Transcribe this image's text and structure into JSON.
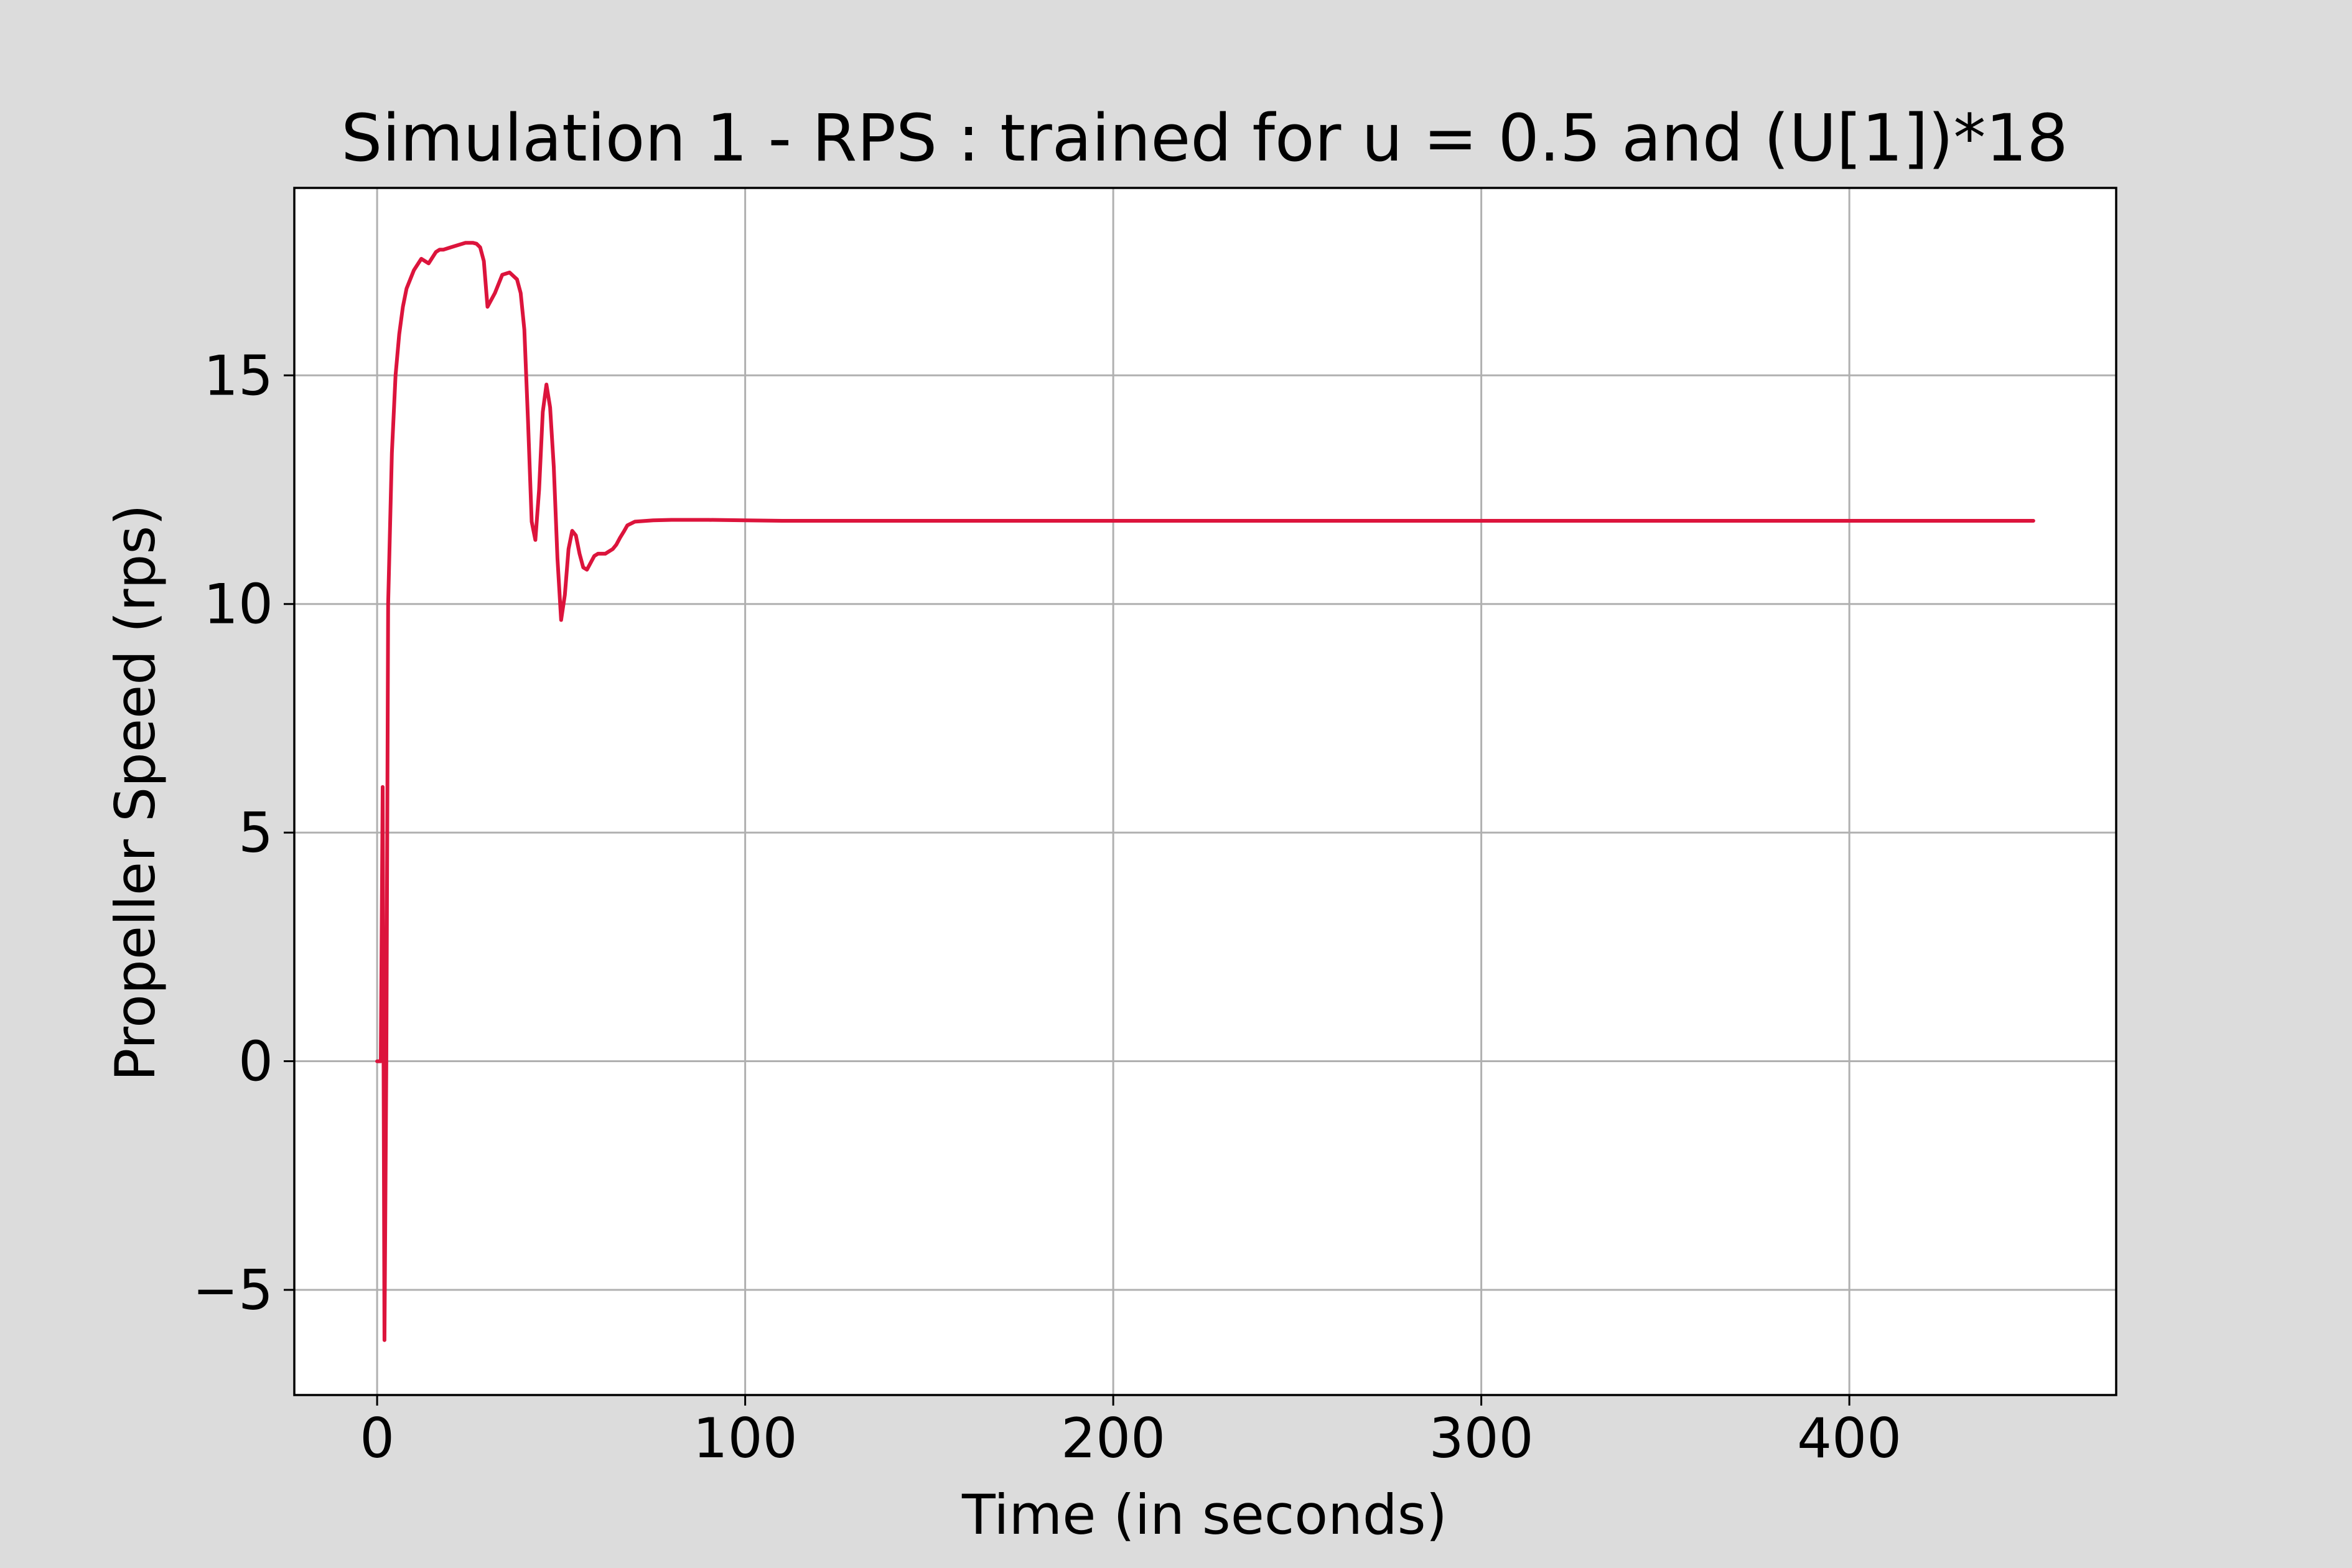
{
  "chart_data": {
    "type": "line",
    "title": "Simulation 1 - RPS : trained for u = 0.5 and (U[1])*18",
    "xlabel": "Time (in seconds)",
    "ylabel": "Propeller Speed (rps)",
    "xlim": [
      -22.5,
      472.5
    ],
    "ylim": [
      -7.3,
      19.1
    ],
    "xticks": [
      0,
      100,
      200,
      300,
      400
    ],
    "xtick_labels": [
      "0",
      "100",
      "200",
      "300",
      "400"
    ],
    "yticks": [
      -5,
      0,
      5,
      10,
      15
    ],
    "ytick_labels": [
      "−5",
      "0",
      "5",
      "10",
      "15"
    ],
    "grid": true,
    "line_color": "#dc143c",
    "background_color": "#dcdcdc",
    "plot_background_color": "#ffffff",
    "series": [
      {
        "x": [
          0,
          1,
          1.5,
          2,
          2.5,
          3,
          4,
          5,
          6,
          7,
          8,
          10,
          12,
          14,
          16,
          17,
          18,
          20,
          22,
          24,
          26,
          27,
          28,
          29,
          30,
          32,
          34,
          36,
          38,
          39,
          40,
          41,
          42,
          43,
          44,
          45,
          46,
          47,
          48,
          49,
          50,
          51,
          52,
          53,
          54,
          55,
          56,
          57,
          58,
          59,
          60,
          61,
          62,
          63,
          64,
          65,
          66,
          67,
          68,
          70,
          75,
          80,
          90,
          100,
          110,
          120,
          130,
          150,
          200,
          300,
          400,
          450
        ],
        "y": [
          0,
          0,
          6,
          -6.1,
          0,
          10,
          13.3,
          15,
          15.9,
          16.5,
          16.9,
          17.3,
          17.55,
          17.45,
          17.7,
          17.75,
          17.75,
          17.8,
          17.85,
          17.9,
          17.9,
          17.88,
          17.8,
          17.5,
          16.5,
          16.8,
          17.2,
          17.25,
          17.1,
          16.8,
          16.0,
          14.0,
          11.8,
          11.4,
          12.5,
          14.2,
          14.8,
          14.3,
          13.0,
          11.0,
          9.65,
          10.2,
          11.2,
          11.6,
          11.5,
          11.1,
          10.8,
          10.75,
          10.9,
          11.05,
          11.1,
          11.1,
          11.1,
          11.15,
          11.2,
          11.3,
          11.45,
          11.58,
          11.72,
          11.8,
          11.83,
          11.84,
          11.84,
          11.83,
          11.82,
          11.82,
          11.82,
          11.82,
          11.82,
          11.82,
          11.82,
          11.82
        ]
      }
    ]
  }
}
